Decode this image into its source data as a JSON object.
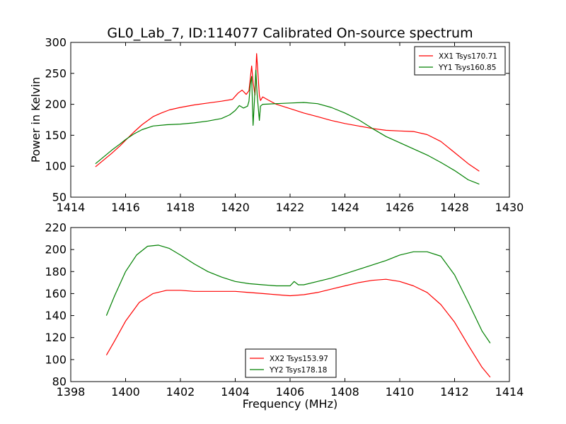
{
  "figure_title": "GL0_Lab_7, ID:114077 Calibrated On-source spectrum",
  "colors": {
    "red": "#ff0000",
    "green": "#008000"
  },
  "chart_data": [
    {
      "type": "line",
      "xlabel": "",
      "ylabel": "Power in Kelvin",
      "xlim": [
        1414,
        1430
      ],
      "ylim": [
        50,
        300
      ],
      "xticks": [
        "1414",
        "1416",
        "1418",
        "1420",
        "1422",
        "1424",
        "1426",
        "1428",
        "1430"
      ],
      "yticks": [
        "50",
        "100",
        "150",
        "200",
        "250",
        "300"
      ],
      "legend_position": "top-right",
      "grid": false,
      "series": [
        {
          "name": "XX1 Tsys170.71",
          "color": "#ff0000",
          "points": [
            [
              1414.9,
              99
            ],
            [
              1415.2,
              110
            ],
            [
              1415.5,
              121
            ],
            [
              1415.8,
              133
            ],
            [
              1416,
              142
            ],
            [
              1416.3,
              155
            ],
            [
              1416.6,
              167
            ],
            [
              1417,
              180
            ],
            [
              1417.3,
              186
            ],
            [
              1417.6,
              191
            ],
            [
              1418,
              195
            ],
            [
              1418.5,
              199
            ],
            [
              1419,
              202
            ],
            [
              1419.5,
              205
            ],
            [
              1419.9,
              208
            ],
            [
              1420.1,
              218
            ],
            [
              1420.25,
              223
            ],
            [
              1420.4,
              216
            ],
            [
              1420.5,
              222
            ],
            [
              1420.55,
              242
            ],
            [
              1420.6,
              262
            ],
            [
              1420.65,
              236
            ],
            [
              1420.72,
              215
            ],
            [
              1420.78,
              282
            ],
            [
              1420.82,
              255
            ],
            [
              1420.88,
              214
            ],
            [
              1420.92,
              206
            ],
            [
              1421.0,
              212
            ],
            [
              1421.2,
              207
            ],
            [
              1421.5,
              200
            ],
            [
              1422,
              193
            ],
            [
              1422.5,
              186
            ],
            [
              1423,
              180
            ],
            [
              1423.5,
              174
            ],
            [
              1424,
              169
            ],
            [
              1424.5,
              165
            ],
            [
              1425,
              161
            ],
            [
              1425.5,
              158
            ],
            [
              1426,
              157
            ],
            [
              1426.5,
              156
            ],
            [
              1427,
              151
            ],
            [
              1427.5,
              140
            ],
            [
              1428,
              122
            ],
            [
              1428.5,
              104
            ],
            [
              1428.9,
              92
            ]
          ]
        },
        {
          "name": "YY1 Tsys160.85",
          "color": "#008000",
          "points": [
            [
              1414.9,
              104
            ],
            [
              1415.2,
              115
            ],
            [
              1415.5,
              126
            ],
            [
              1415.8,
              136
            ],
            [
              1416,
              143
            ],
            [
              1416.3,
              152
            ],
            [
              1416.6,
              159
            ],
            [
              1417,
              165
            ],
            [
              1417.5,
              167
            ],
            [
              1418,
              168
            ],
            [
              1418.5,
              170
            ],
            [
              1419,
              173
            ],
            [
              1419.5,
              177
            ],
            [
              1419.8,
              183
            ],
            [
              1420.0,
              190
            ],
            [
              1420.15,
              198
            ],
            [
              1420.3,
              194
            ],
            [
              1420.45,
              197
            ],
            [
              1420.5,
              205
            ],
            [
              1420.55,
              232
            ],
            [
              1420.6,
              245
            ],
            [
              1420.65,
              166
            ],
            [
              1420.7,
              205
            ],
            [
              1420.75,
              255
            ],
            [
              1420.8,
              215
            ],
            [
              1420.88,
              174
            ],
            [
              1420.92,
              197
            ],
            [
              1421.0,
              200
            ],
            [
              1421.5,
              201
            ],
            [
              1422,
              202
            ],
            [
              1422.5,
              203
            ],
            [
              1423,
              201
            ],
            [
              1423.5,
              195
            ],
            [
              1424,
              186
            ],
            [
              1424.5,
              175
            ],
            [
              1425,
              161
            ],
            [
              1425.5,
              148
            ],
            [
              1426,
              138
            ],
            [
              1426.5,
              128
            ],
            [
              1427,
              118
            ],
            [
              1427.5,
              106
            ],
            [
              1428,
              93
            ],
            [
              1428.5,
              78
            ],
            [
              1428.9,
              71
            ]
          ]
        }
      ]
    },
    {
      "type": "line",
      "xlabel": "Frequency (MHz)",
      "ylabel": "",
      "xlim": [
        1398,
        1414
      ],
      "ylim": [
        80,
        220
      ],
      "xticks": [
        "1398",
        "1400",
        "1402",
        "1404",
        "1406",
        "1408",
        "1410",
        "1412",
        "1414"
      ],
      "yticks": [
        "80",
        "100",
        "120",
        "140",
        "160",
        "180",
        "200",
        "220"
      ],
      "legend_position": "bottom-center",
      "grid": false,
      "series": [
        {
          "name": "XX2 Tsys153.97",
          "color": "#ff0000",
          "points": [
            [
              1399.3,
              104
            ],
            [
              1399.6,
              117
            ],
            [
              1400,
              135
            ],
            [
              1400.5,
              152
            ],
            [
              1401,
              160
            ],
            [
              1401.5,
              163
            ],
            [
              1402,
              163
            ],
            [
              1402.5,
              162
            ],
            [
              1403,
              162
            ],
            [
              1403.5,
              162
            ],
            [
              1404,
              162
            ],
            [
              1404.5,
              161
            ],
            [
              1405,
              160
            ],
            [
              1405.5,
              159
            ],
            [
              1406,
              158
            ],
            [
              1406.5,
              159
            ],
            [
              1407,
              161
            ],
            [
              1407.5,
              164
            ],
            [
              1408,
              167
            ],
            [
              1408.5,
              170
            ],
            [
              1409,
              172
            ],
            [
              1409.5,
              173
            ],
            [
              1410,
              171
            ],
            [
              1410.5,
              167
            ],
            [
              1411,
              161
            ],
            [
              1411.5,
              150
            ],
            [
              1412,
              134
            ],
            [
              1412.5,
              113
            ],
            [
              1413,
              93
            ],
            [
              1413.3,
              84
            ]
          ]
        },
        {
          "name": "YY2 Tsys178.18",
          "color": "#008000",
          "points": [
            [
              1399.3,
              140
            ],
            [
              1399.6,
              158
            ],
            [
              1400,
              180
            ],
            [
              1400.4,
              195
            ],
            [
              1400.8,
              203
            ],
            [
              1401.2,
              204
            ],
            [
              1401.6,
              201
            ],
            [
              1402,
              195
            ],
            [
              1402.5,
              187
            ],
            [
              1403,
              180
            ],
            [
              1403.5,
              175
            ],
            [
              1404,
              171
            ],
            [
              1404.5,
              169
            ],
            [
              1405,
              168
            ],
            [
              1405.5,
              167
            ],
            [
              1406,
              167
            ],
            [
              1406.15,
              171
            ],
            [
              1406.3,
              168
            ],
            [
              1406.5,
              168
            ],
            [
              1407,
              171
            ],
            [
              1407.5,
              174
            ],
            [
              1408,
              178
            ],
            [
              1408.5,
              182
            ],
            [
              1409,
              186
            ],
            [
              1409.5,
              190
            ],
            [
              1410,
              195
            ],
            [
              1410.5,
              198
            ],
            [
              1411,
              198
            ],
            [
              1411.5,
              194
            ],
            [
              1412,
              177
            ],
            [
              1412.5,
              152
            ],
            [
              1413,
              126
            ],
            [
              1413.3,
              115
            ]
          ]
        }
      ]
    }
  ]
}
